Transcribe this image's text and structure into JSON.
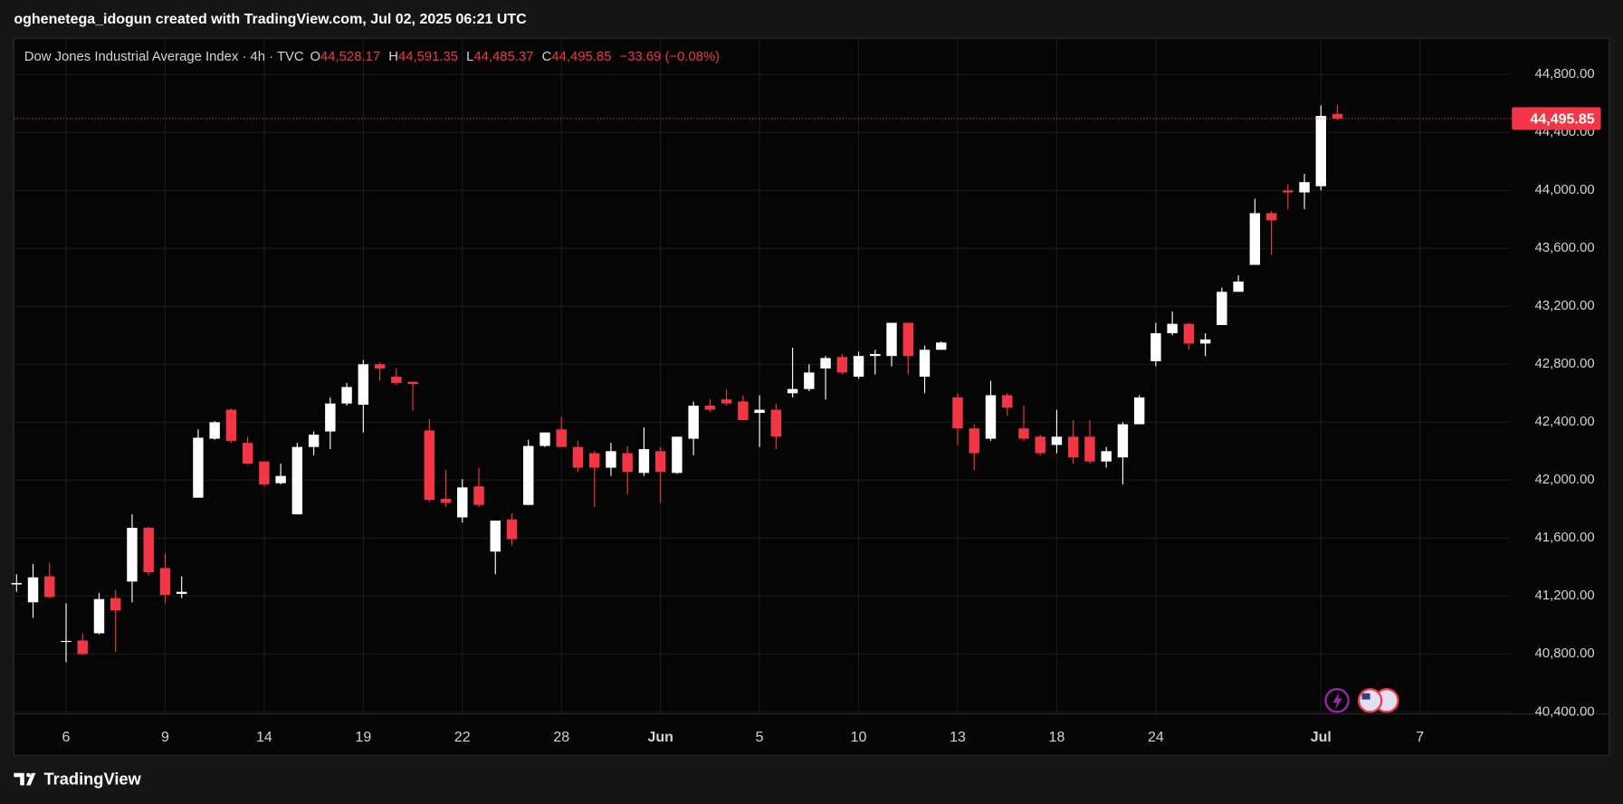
{
  "header": "oghenetega_idogun created with TradingView.com, Jul 02, 2025 06:21 UTC",
  "footer": "TradingView",
  "chart_data": {
    "type": "candlestick",
    "title": "Dow Jones Industrial Average Index · 4h · TVC",
    "legend_letters": [
      "O",
      "H",
      "L",
      "C"
    ],
    "ohlc_labels": {
      "open": "44,528.17",
      "high": "44,591.35",
      "low": "44,485.37",
      "close": "44,495.85",
      "change": "−33.69 (−0.08%)"
    },
    "up_color": "#ffffff",
    "down_color": "#f23645",
    "open": [
      41280,
      41157,
      41336,
      40886,
      40893,
      40943,
      41186,
      41300,
      41671,
      41393,
      41215,
      41879,
      42286,
      42486,
      42257,
      42129,
      41979,
      41764,
      42229,
      42336,
      42529,
      42521,
      42800,
      42714,
      42679,
      42343,
      41871,
      41743,
      41957,
      41507,
      41729,
      41829,
      42236,
      42350,
      42229,
      42186,
      42086,
      42186,
      42050,
      42200,
      42050,
      42286,
      42514,
      42557,
      42543,
      42464,
      42486,
      42600,
      42629,
      42771,
      42850,
      42714,
      42857,
      42857,
      43086,
      42714,
      42900,
      42571,
      42357,
      42286,
      42586,
      42357,
      42300,
      42243,
      42300,
      42300,
      42129,
      42157,
      42386,
      42821,
      43014,
      43079,
      42943,
      43071,
      43300,
      43486,
      43843,
      44000,
      43986,
      44029,
      44528.17
    ],
    "high": [
      41350,
      41421,
      41429,
      41150,
      40943,
      41221,
      41243,
      41764,
      41679,
      41493,
      41336,
      42350,
      42407,
      42493,
      42300,
      42129,
      42114,
      42257,
      42336,
      42571,
      42671,
      42829,
      42814,
      42771,
      42679,
      42421,
      42071,
      42007,
      42086,
      41721,
      41771,
      42279,
      42329,
      42436,
      42271,
      42200,
      42257,
      42236,
      42364,
      42229,
      42300,
      42543,
      42557,
      42629,
      42586,
      42586,
      42529,
      42914,
      42800,
      42857,
      42871,
      42886,
      42900,
      43086,
      43086,
      42929,
      42957,
      42600,
      42386,
      42686,
      42600,
      42514,
      42314,
      42486,
      42414,
      42414,
      42229,
      42400,
      42586,
      43086,
      43164,
      43086,
      43014,
      43329,
      43414,
      43943,
      43857,
      44043,
      44114,
      44586,
      44591.35
    ],
    "low": [
      41230,
      41050,
      41186,
      40743,
      40793,
      40936,
      40814,
      41157,
      41343,
      41150,
      41186,
      41879,
      42279,
      42257,
      42107,
      41957,
      41971,
      41764,
      42171,
      42214,
      42514,
      42329,
      42686,
      42657,
      42479,
      41850,
      41814,
      41707,
      41814,
      41350,
      41550,
      41829,
      42229,
      42229,
      42057,
      41814,
      42029,
      41900,
      42029,
      41843,
      42043,
      42171,
      42471,
      42514,
      42414,
      42229,
      42214,
      42571,
      42614,
      42557,
      42729,
      42700,
      42729,
      42786,
      42729,
      42600,
      42900,
      42243,
      42071,
      42271,
      42443,
      42271,
      42171,
      42186,
      42114,
      42114,
      42086,
      41971,
      42386,
      42786,
      43000,
      42900,
      42857,
      43071,
      43300,
      43486,
      43557,
      43871,
      43871,
      44000,
      44485.37
    ],
    "close": [
      41290,
      41329,
      41193,
      40890,
      40800,
      41179,
      41100,
      41671,
      41364,
      41207,
      41229,
      42293,
      42400,
      42271,
      42114,
      41971,
      42029,
      42229,
      42314,
      42529,
      42643,
      42800,
      42771,
      42671,
      42664,
      41864,
      41843,
      41950,
      41829,
      41721,
      41593,
      42236,
      42329,
      42229,
      42086,
      42086,
      42200,
      42057,
      42214,
      42057,
      42300,
      42514,
      42486,
      42529,
      42414,
      42486,
      42300,
      42629,
      42743,
      42843,
      42743,
      42857,
      42871,
      43086,
      42857,
      42900,
      42950,
      42357,
      42186,
      42586,
      42500,
      42286,
      42186,
      42300,
      42157,
      42129,
      42200,
      42386,
      42571,
      43014,
      43079,
      42943,
      42971,
      43300,
      43371,
      43843,
      43793,
      43986,
      44057,
      44514,
      44495.85
    ],
    "xlim": [
      -0.16,
      90.5
    ],
    "xticks": [
      {
        "value": 3,
        "label": "6"
      },
      {
        "value": 9,
        "label": "9"
      },
      {
        "value": 15,
        "label": "14"
      },
      {
        "value": 21,
        "label": "19"
      },
      {
        "value": 27,
        "label": "22"
      },
      {
        "value": 33,
        "label": "28"
      },
      {
        "value": 39,
        "label": "Jun"
      },
      {
        "value": 45,
        "label": "5"
      },
      {
        "value": 51,
        "label": "10"
      },
      {
        "value": 57,
        "label": "13"
      },
      {
        "value": 63,
        "label": "18"
      },
      {
        "value": 69,
        "label": "24"
      },
      {
        "value": 79,
        "label": "Jul"
      },
      {
        "value": 85,
        "label": "7"
      }
    ],
    "ylim": [
      40386,
      45050
    ],
    "yticks": [
      {
        "value": 40400,
        "label": "40,400.00"
      },
      {
        "value": 40800,
        "label": "40,800.00"
      },
      {
        "value": 41200,
        "label": "41,200.00"
      },
      {
        "value": 41600,
        "label": "41,600.00"
      },
      {
        "value": 42000,
        "label": "42,000.00"
      },
      {
        "value": 42400,
        "label": "42,400.00"
      },
      {
        "value": 42800,
        "label": "42,800.00"
      },
      {
        "value": 43200,
        "label": "43,200.00"
      },
      {
        "value": 43600,
        "label": "43,600.00"
      },
      {
        "value": 44000,
        "label": "44,000.00"
      },
      {
        "value": 44400,
        "label": "44,400.00"
      },
      {
        "value": 44800,
        "label": "44,800.00"
      }
    ],
    "grid": true
  }
}
